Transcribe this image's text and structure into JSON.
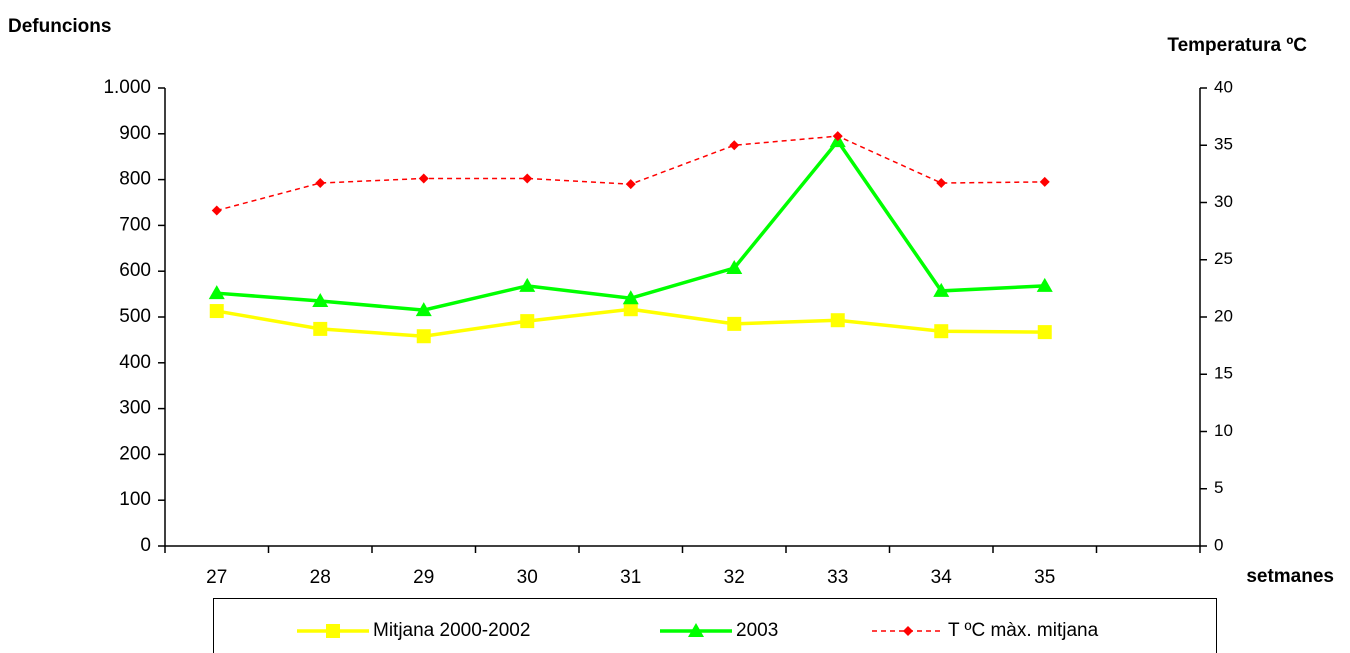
{
  "chart_data": {
    "type": "line",
    "y_title": "Defuncions",
    "y2_title": "Temperatura ºC",
    "x_title": "setmanes",
    "categories": [
      "27",
      "28",
      "29",
      "30",
      "31",
      "32",
      "33",
      "34",
      "35",
      null
    ],
    "series": [
      {
        "name": "Mitjana 2000-2002",
        "color": "#ffff00",
        "marker": "square",
        "values": [
          513,
          474,
          458,
          491,
          517,
          485,
          493,
          469,
          467,
          null
        ]
      },
      {
        "name": "2003",
        "color": "#00ff00",
        "marker": "triangle",
        "values": [
          552,
          535,
          515,
          568,
          541,
          607,
          884,
          557,
          568,
          null
        ]
      },
      {
        "name": "T ºC màx. mitjana",
        "color": "#ff0000",
        "marker": "diamond",
        "dashed": true,
        "axis": "y2",
        "values": [
          29.3,
          31.7,
          32.1,
          32.1,
          31.6,
          35.0,
          35.8,
          31.7,
          31.8,
          null
        ]
      }
    ],
    "ylim": [
      0,
      1000
    ],
    "yticks": [
      0,
      100,
      200,
      300,
      400,
      500,
      600,
      700,
      800,
      900,
      {
        "value": 1000,
        "label": "1.000"
      }
    ],
    "y2lim": [
      0,
      40
    ],
    "y2ticks": [
      0,
      5,
      10,
      15,
      20,
      25,
      30,
      35,
      40
    ],
    "legend": "bottom"
  }
}
